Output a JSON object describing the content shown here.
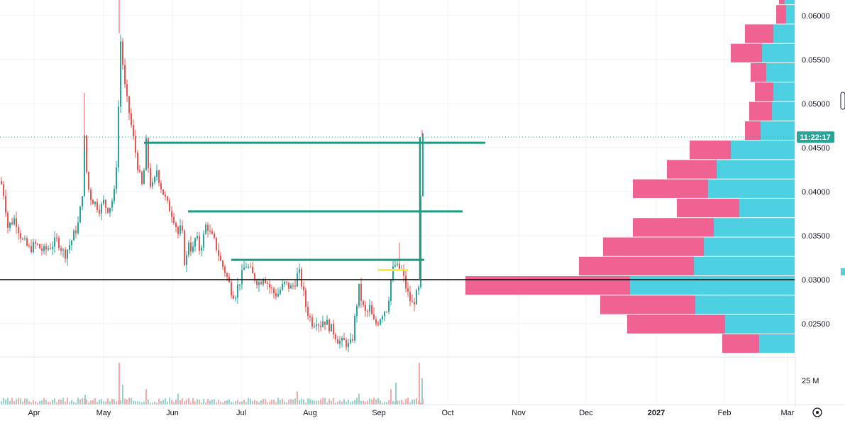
{
  "chart_data": {
    "type": "candlestick",
    "y_axis": {
      "min": 0.0215,
      "max": 0.0618,
      "ticks": [
        "0.06000",
        "0.05500",
        "0.05000",
        "0.04500",
        "0.04000",
        "0.03500",
        "0.03000",
        "0.02500"
      ],
      "tick_values": [
        0.06,
        0.055,
        0.05,
        0.045,
        0.04,
        0.035,
        0.03,
        0.025
      ]
    },
    "x_axis": {
      "months": [
        "Apr",
        "May",
        "Jun",
        "Jul",
        "Aug",
        "Sep",
        "Oct",
        "Nov",
        "Dec",
        "2027",
        "Feb",
        "Mar"
      ],
      "bold_label": "2027"
    },
    "countdown_label": "11:22:17",
    "last_price": 0.0462,
    "volume_label": "25 M",
    "colors": {
      "up": "#26a69a",
      "down": "#ef5350",
      "vp_left": "#f06292",
      "vp_right": "#4dd0e1",
      "line": "#1b9b7f",
      "level": "#000000",
      "highlight": "#ffeb3b",
      "badge": "#26a69a"
    },
    "price_path": [
      [
        0,
        0.0412
      ],
      [
        5,
        0.0395
      ],
      [
        10,
        0.036
      ],
      [
        20,
        0.037
      ],
      [
        30,
        0.0345
      ],
      [
        40,
        0.0335
      ],
      [
        50,
        0.034
      ],
      [
        60,
        0.0332
      ],
      [
        70,
        0.0338
      ],
      [
        80,
        0.0345
      ],
      [
        90,
        0.0328
      ],
      [
        100,
        0.0345
      ],
      [
        110,
        0.0365
      ],
      [
        115,
        0.04
      ],
      [
        118,
        0.046
      ],
      [
        122,
        0.041
      ],
      [
        126,
        0.0395
      ],
      [
        130,
        0.039
      ],
      [
        135,
        0.0385
      ],
      [
        140,
        0.038
      ],
      [
        145,
        0.0388
      ],
      [
        150,
        0.038
      ],
      [
        155,
        0.0385
      ],
      [
        160,
        0.0398
      ],
      [
        165,
        0.0455
      ],
      [
        168,
        0.058
      ],
      [
        172,
        0.0545
      ],
      [
        176,
        0.051
      ],
      [
        180,
        0.0495
      ],
      [
        185,
        0.047
      ],
      [
        190,
        0.0445
      ],
      [
        195,
        0.042
      ],
      [
        200,
        0.0403
      ],
      [
        205,
        0.0455
      ],
      [
        210,
        0.041
      ],
      [
        215,
        0.0405
      ],
      [
        220,
        0.0425
      ],
      [
        225,
        0.0408
      ],
      [
        230,
        0.0396
      ],
      [
        235,
        0.0385
      ],
      [
        240,
        0.0378
      ],
      [
        245,
        0.0368
      ],
      [
        250,
        0.0352
      ],
      [
        255,
        0.036
      ],
      [
        260,
        0.0312
      ],
      [
        265,
        0.0345
      ],
      [
        270,
        0.033
      ],
      [
        275,
        0.035
      ],
      [
        280,
        0.0335
      ],
      [
        285,
        0.0345
      ],
      [
        290,
        0.0365
      ],
      [
        295,
        0.0352
      ],
      [
        300,
        0.0345
      ],
      [
        305,
        0.0335
      ],
      [
        310,
        0.032
      ],
      [
        315,
        0.0312
      ],
      [
        320,
        0.03
      ],
      [
        325,
        0.0288
      ],
      [
        330,
        0.0282
      ],
      [
        335,
        0.0295
      ],
      [
        340,
        0.0305
      ],
      [
        345,
        0.0318
      ],
      [
        350,
        0.0312
      ],
      [
        355,
        0.0305
      ],
      [
        360,
        0.03
      ],
      [
        365,
        0.0296
      ],
      [
        370,
        0.0305
      ],
      [
        375,
        0.0298
      ],
      [
        380,
        0.029
      ],
      [
        385,
        0.0285
      ],
      [
        390,
        0.0283
      ],
      [
        395,
        0.029
      ],
      [
        400,
        0.0295
      ],
      [
        405,
        0.0293
      ],
      [
        410,
        0.029
      ],
      [
        415,
        0.0298
      ],
      [
        420,
        0.031
      ],
      [
        425,
        0.0292
      ],
      [
        430,
        0.027
      ],
      [
        435,
        0.0258
      ],
      [
        440,
        0.025
      ],
      [
        445,
        0.0255
      ],
      [
        450,
        0.0248
      ],
      [
        455,
        0.0255
      ],
      [
        460,
        0.025
      ],
      [
        465,
        0.0245
      ],
      [
        470,
        0.024
      ],
      [
        475,
        0.0232
      ],
      [
        480,
        0.0228
      ],
      [
        485,
        0.023
      ],
      [
        490,
        0.0225
      ],
      [
        495,
        0.0228
      ],
      [
        500,
        0.0262
      ],
      [
        505,
        0.029
      ],
      [
        510,
        0.027
      ],
      [
        515,
        0.026
      ],
      [
        520,
        0.0268
      ],
      [
        525,
        0.0252
      ],
      [
        530,
        0.025
      ],
      [
        535,
        0.0258
      ],
      [
        540,
        0.0265
      ],
      [
        545,
        0.0268
      ],
      [
        550,
        0.03
      ],
      [
        555,
        0.0318
      ],
      [
        560,
        0.0312
      ],
      [
        565,
        0.031
      ],
      [
        570,
        0.0295
      ],
      [
        575,
        0.028
      ],
      [
        580,
        0.0272
      ],
      [
        585,
        0.028
      ],
      [
        590,
        0.029
      ],
      [
        593,
        0.044
      ],
      [
        595,
        0.0462
      ]
    ],
    "levels": [
      {
        "name": "level-0.0300",
        "price": 0.03,
        "from": 0,
        "to": 1120,
        "color": "#000000"
      },
      {
        "name": "resistance-upper",
        "price": 0.04555,
        "from": 203,
        "to": 684,
        "color": "#1b9b7f"
      },
      {
        "name": "resistance-middle",
        "price": 0.03775,
        "from": 265,
        "to": 652,
        "color": "#1b9b7f"
      },
      {
        "name": "resistance-lower",
        "price": 0.03225,
        "from": 326,
        "to": 598,
        "color": "#1b9b7f"
      },
      {
        "name": "support-highlight",
        "price": 0.0311,
        "from": 532,
        "to": 575,
        "color": "#ffeb3b"
      }
    ],
    "vertical_move": {
      "x": 592,
      "from": 0.03,
      "to": 0.0462
    },
    "volume_profile": [
      {
        "lo": 0.0612,
        "hi": 0.0635,
        "a": 8,
        "b": 14
      },
      {
        "lo": 0.059,
        "hi": 0.0612,
        "a": 14,
        "b": 12
      },
      {
        "lo": 0.0568,
        "hi": 0.059,
        "a": 40,
        "b": 30
      },
      {
        "lo": 0.0546,
        "hi": 0.0568,
        "a": 44,
        "b": 46
      },
      {
        "lo": 0.0524,
        "hi": 0.0546,
        "a": 22,
        "b": 40
      },
      {
        "lo": 0.0502,
        "hi": 0.0524,
        "a": 26,
        "b": 30
      },
      {
        "lo": 0.048,
        "hi": 0.0502,
        "a": 32,
        "b": 32
      },
      {
        "lo": 0.0458,
        "hi": 0.048,
        "a": 22,
        "b": 48
      },
      {
        "lo": 0.0436,
        "hi": 0.0458,
        "a": 58,
        "b": 90
      },
      {
        "lo": 0.0414,
        "hi": 0.0436,
        "a": 70,
        "b": 110
      },
      {
        "lo": 0.0392,
        "hi": 0.0414,
        "a": 106,
        "b": 122
      },
      {
        "lo": 0.037,
        "hi": 0.0392,
        "a": 88,
        "b": 78
      },
      {
        "lo": 0.0348,
        "hi": 0.037,
        "a": 114,
        "b": 114
      },
      {
        "lo": 0.0326,
        "hi": 0.0348,
        "a": 142,
        "b": 128
      },
      {
        "lo": 0.0304,
        "hi": 0.0326,
        "a": 162,
        "b": 142
      },
      {
        "lo": 0.0282,
        "hi": 0.0304,
        "a": 232,
        "b": 232
      },
      {
        "lo": 0.026,
        "hi": 0.0282,
        "a": 134,
        "b": 140
      },
      {
        "lo": 0.0238,
        "hi": 0.026,
        "a": 138,
        "b": 98
      },
      {
        "lo": 0.0216,
        "hi": 0.0238,
        "a": 52,
        "b": 50
      }
    ],
    "volume_spikes": [
      {
        "x": 119,
        "v": 0.22
      },
      {
        "x": 167,
        "v": 0.95
      },
      {
        "x": 172,
        "v": 0.45
      },
      {
        "x": 205,
        "v": 0.35
      },
      {
        "x": 250,
        "v": 0.25
      },
      {
        "x": 418,
        "v": 0.3
      },
      {
        "x": 505,
        "v": 0.25
      },
      {
        "x": 550,
        "v": 0.35
      },
      {
        "x": 557,
        "v": 0.5
      },
      {
        "x": 590,
        "v": 0.95
      },
      {
        "x": 594,
        "v": 0.6
      }
    ]
  }
}
